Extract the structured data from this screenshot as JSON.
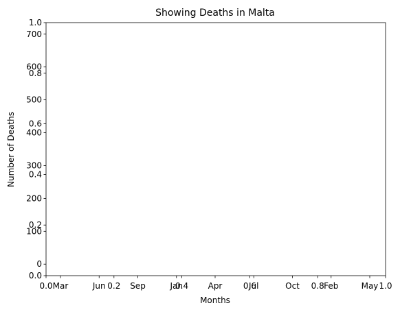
{
  "chart_data": {
    "type": "line",
    "title": "Showing Deaths in Malta",
    "xlabel": "Months",
    "ylabel": "Number of Deaths",
    "grid": false,
    "legend": "none",
    "series_color": "#1f77b4",
    "x_ticks": [
      "Mar",
      "Jun",
      "Sep",
      "Jan",
      "Apr",
      "Jul",
      "Oct",
      "Feb",
      "May"
    ],
    "y_ticks": [
      0,
      100,
      200,
      300,
      400,
      500,
      600,
      700
    ],
    "ylim": [
      -35,
      735
    ],
    "overlay_ticks": [
      "0.0",
      "0.2",
      "0.4",
      "0.6",
      "0.8",
      "1.0"
    ],
    "overlay_lim": [
      0,
      1
    ],
    "series": []
  }
}
